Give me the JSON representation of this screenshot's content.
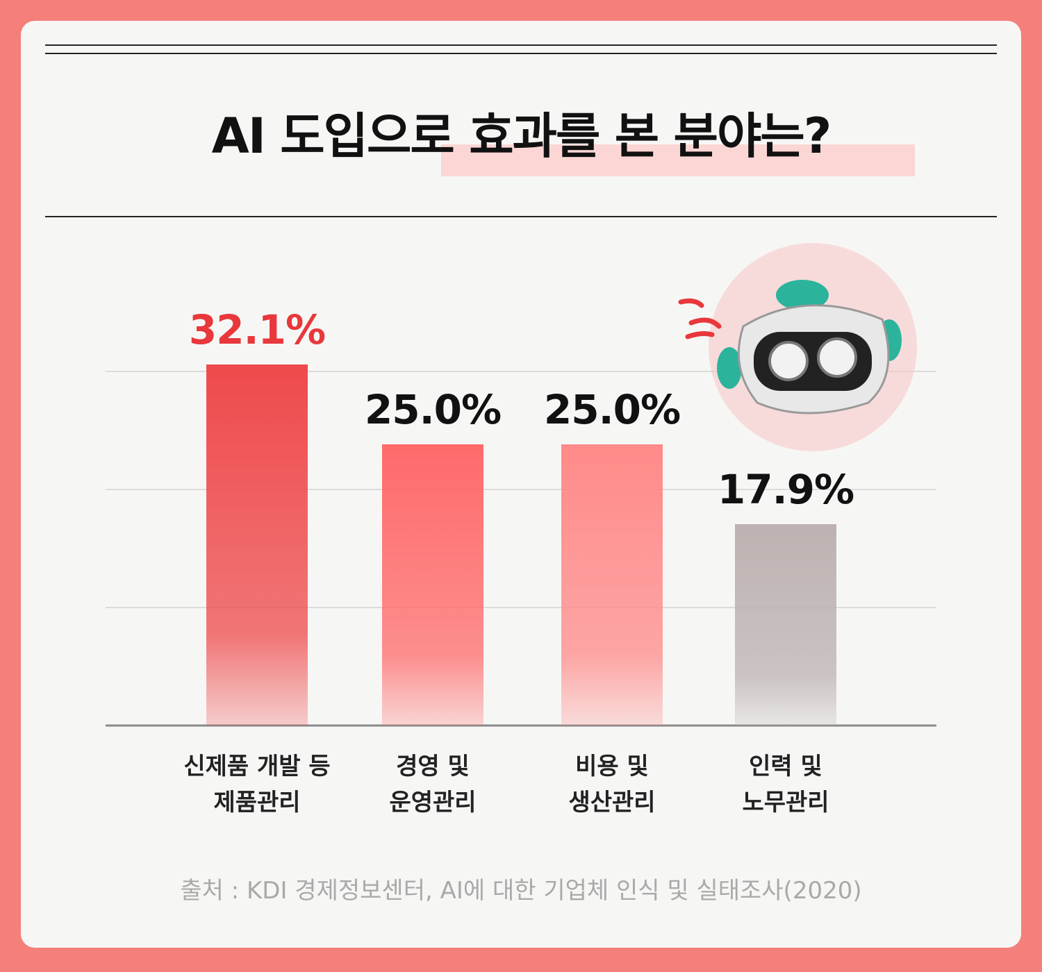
{
  "chart_data": {
    "type": "bar",
    "title": "AI 도입으로 효과를 본 분야는?",
    "categories": [
      "신제품 개발 등\n제품관리",
      "경영 및\n운영관리",
      "비용 및\n생산관리",
      "인력 및\n노무관리"
    ],
    "values": [
      32.1,
      25.0,
      25.0,
      17.9
    ],
    "value_labels": [
      "32.1%",
      "25.0%",
      "25.0%",
      "17.9%"
    ],
    "colors": [
      "#ef4a4c",
      "#ff6a6b",
      "#ff8a89",
      "#bcb2b1"
    ],
    "value_label_colors": [
      "#e8383c",
      "#111111",
      "#111111",
      "#111111"
    ],
    "source": "출처 : KDI 경제정보센터, AI에 대한 기업체 인식 및 실태조사(2020)"
  }
}
